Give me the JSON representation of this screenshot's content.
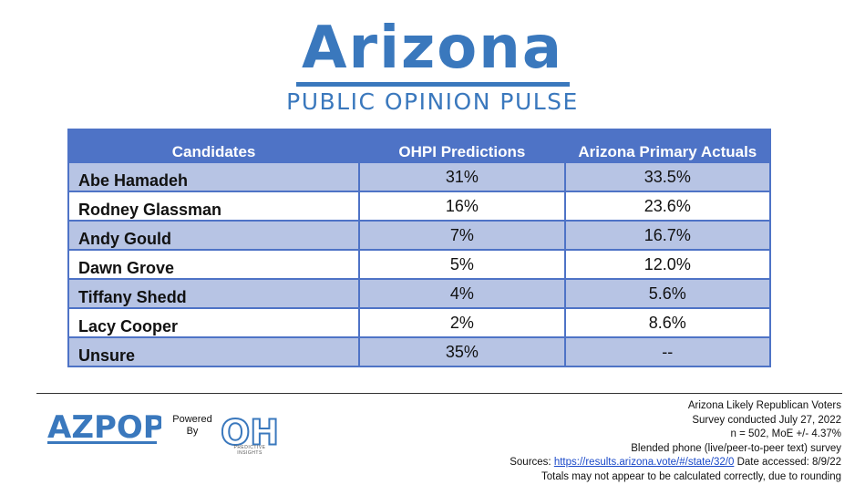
{
  "header": {
    "title": "Arizona",
    "subtitle": "PUBLIC OPINION PULSE"
  },
  "table": {
    "columns": [
      "Candidates",
      "OHPI Predictions",
      "Arizona Primary Actuals"
    ],
    "rows": [
      {
        "name": "Abe Hamadeh",
        "prediction": "31%",
        "actual": "33.5%"
      },
      {
        "name": "Rodney Glassman",
        "prediction": "16%",
        "actual": "23.6%"
      },
      {
        "name": "Andy Gould",
        "prediction": "7%",
        "actual": "16.7%"
      },
      {
        "name": "Dawn Grove",
        "prediction": "5%",
        "actual": "12.0%"
      },
      {
        "name": "Tiffany Shedd",
        "prediction": "4%",
        "actual": "5.6%"
      },
      {
        "name": "Lacy Cooper",
        "prediction": "2%",
        "actual": "8.6%"
      },
      {
        "name": "Unsure",
        "prediction": "35%",
        "actual": "--"
      }
    ]
  },
  "footer": {
    "azpop_logo_text": "AZPOP",
    "powered_line1": "Powered",
    "powered_line2": "By",
    "oh_logo_text": "OH",
    "oh_logo_sub1": "PREDICTIVE",
    "oh_logo_sub2": "INSIGHTS",
    "notes": {
      "line1": "Arizona Likely Republican Voters",
      "line2": "Survey conducted July 27, 2022",
      "line3": "n = 502, MoE +/- 4.37%",
      "line4": "Blended phone (live/peer-to-peer text) survey",
      "sources_label": "Sources:",
      "sources_link": "https://results.arizona.vote/#/state/32/0",
      "date_accessed": "Date accessed: 8/9/22",
      "line6": "Totals may not appear to be calculated correctly, due to rounding"
    }
  },
  "colors": {
    "brand_blue": "#3a78bd",
    "header_blue": "#4e73c6",
    "row_shade": "#b7c4e4",
    "link": "#1a49c9"
  }
}
